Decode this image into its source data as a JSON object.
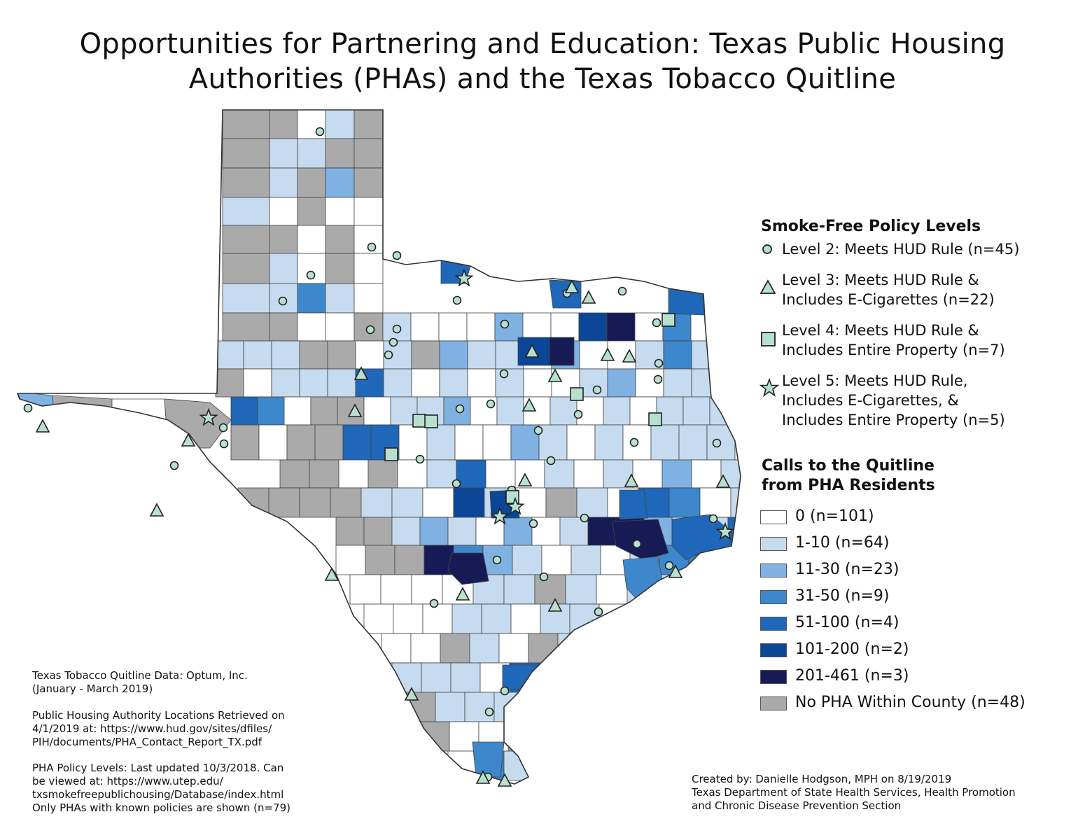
{
  "title_line1": "Opportunities for Partnering and Education: Texas Public Housing",
  "title_line2": "Authorities (PHAs) and the Texas Tobacco Quitline",
  "policy_legend": {
    "heading": "Smoke-Free Policy Levels",
    "items": [
      {
        "marker": "circle",
        "label": "Level 2: Meets HUD Rule (n=45)"
      },
      {
        "marker": "triangle",
        "label": "Level 3: Meets HUD Rule &\nIncludes E-Cigarettes (n=22)"
      },
      {
        "marker": "square",
        "label": "Level 4: Meets HUD Rule &\nIncludes Entire Property (n=7)"
      },
      {
        "marker": "star",
        "label": "Level 5: Meets HUD Rule,\nIncludes E-Cigarettes, &\nIncludes Entire Property (n=5)"
      }
    ]
  },
  "calls_legend": {
    "heading_line1": "Calls to the Quitline",
    "heading_line2": "from PHA Residents",
    "classes": [
      {
        "label": "0 (n=101)",
        "color": "#ffffff"
      },
      {
        "label": "1-10 (n=64)",
        "color": "#c6dbef"
      },
      {
        "label": "11-30 (n=23)",
        "color": "#7fb2e2"
      },
      {
        "label": "31-50 (n=9)",
        "color": "#3d87cc"
      },
      {
        "label": "51-100 (n=4)",
        "color": "#1f67b8"
      },
      {
        "label": "101-200 (n=2)",
        "color": "#0b4796"
      },
      {
        "label": "201-461 (n=3)",
        "color": "#171b55"
      },
      {
        "label": "No PHA Within County (n=48)",
        "color": "#aaaaaa"
      }
    ]
  },
  "marker_color": "#b8e0cf",
  "notes": {
    "source1": "Texas Tobacco Quitline Data: Optum, Inc.\n(January - March 2019)",
    "source2": "Public Housing Authority Locations Retrieved on\n4/1/2019 at: https://www.hud.gov/sites/dfiles/\nPIH/documents/PHA_Contact_Report_TX.pdf",
    "source3": "PHA Policy Levels: Last updated 10/3/2018. Can\nbe viewed at: https://www.utep.edu/\ntxsmokefreepublichousing/Database/index.html\nOnly PHAs with known policies are shown (n=79)"
  },
  "credit": "Created by: Danielle Hodgson, MPH on 8/19/2019\nTexas Department of State Health Services, Health Promotion\nand Chronic Disease Prevention Section"
}
